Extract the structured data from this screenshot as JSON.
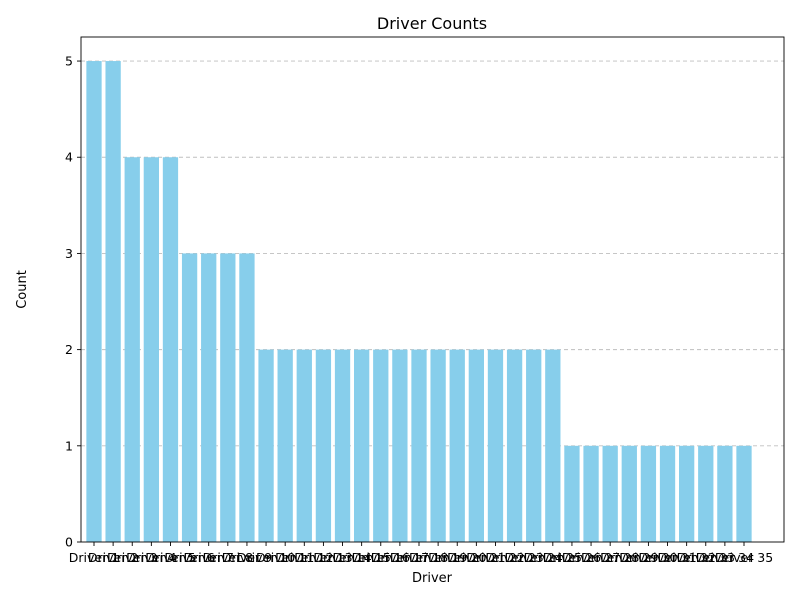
{
  "chart_data": {
    "type": "bar",
    "title": "Driver Counts",
    "xlabel": "Driver",
    "ylabel": "Count",
    "ylim": [
      0,
      5.25
    ],
    "yticks": [
      0,
      1,
      2,
      3,
      4,
      5
    ],
    "grid": "y-dashed",
    "bar_color": "#87ceeb",
    "categories": [
      "Driver 1",
      "Driver 2",
      "Driver 3",
      "Driver 4",
      "Driver 5",
      "Driver 6",
      "Driver 7",
      "Driver 8",
      "Driver 9",
      "Driver 10",
      "Driver 11",
      "Driver 12",
      "Driver 13",
      "Driver 14",
      "Driver 15",
      "Driver 16",
      "Driver 17",
      "Driver 18",
      "Driver 19",
      "Driver 20",
      "Driver 21",
      "Driver 22",
      "Driver 23",
      "Driver 24",
      "Driver 25",
      "Driver 26",
      "Driver 27",
      "Driver 28",
      "Driver 29",
      "Driver 30",
      "Driver 31",
      "Driver 32",
      "Driver 33",
      "Driver 34",
      "Driver 35"
    ],
    "values": [
      5,
      5,
      4,
      4,
      4,
      3,
      3,
      3,
      3,
      2,
      2,
      2,
      2,
      2,
      2,
      2,
      2,
      2,
      2,
      2,
      2,
      2,
      2,
      2,
      2,
      1,
      1,
      1,
      1,
      1,
      1,
      1,
      1,
      1,
      1
    ]
  }
}
